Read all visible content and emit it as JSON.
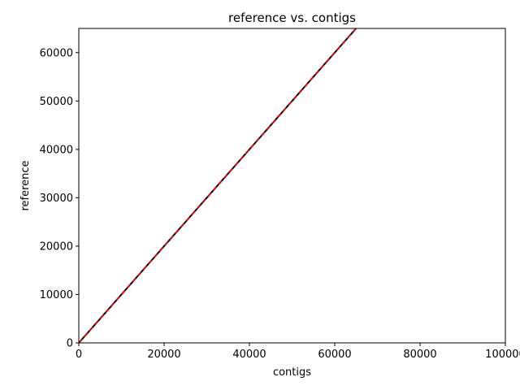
{
  "chart_data": {
    "type": "line",
    "title": "reference vs. contigs",
    "xlabel": "contigs",
    "ylabel": "reference",
    "xlim": [
      0,
      100000
    ],
    "ylim": [
      0,
      65000
    ],
    "xticks": [
      0,
      20000,
      40000,
      60000,
      80000,
      100000
    ],
    "xtick_labels": [
      "0",
      "20000",
      "40000",
      "60000",
      "80000",
      "100000"
    ],
    "yticks": [
      0,
      10000,
      20000,
      30000,
      40000,
      50000,
      60000
    ],
    "ytick_labels": [
      "0",
      "10000",
      "20000",
      "30000",
      "40000",
      "50000",
      "60000"
    ],
    "grid": false,
    "series": [
      {
        "color": "#000000",
        "style": "solid",
        "x": [
          0,
          65000
        ],
        "y": [
          0,
          65000
        ]
      },
      {
        "color": "#ff0000",
        "style": "dashed",
        "x": [
          0,
          65000
        ],
        "y": [
          0,
          65000
        ]
      }
    ]
  }
}
